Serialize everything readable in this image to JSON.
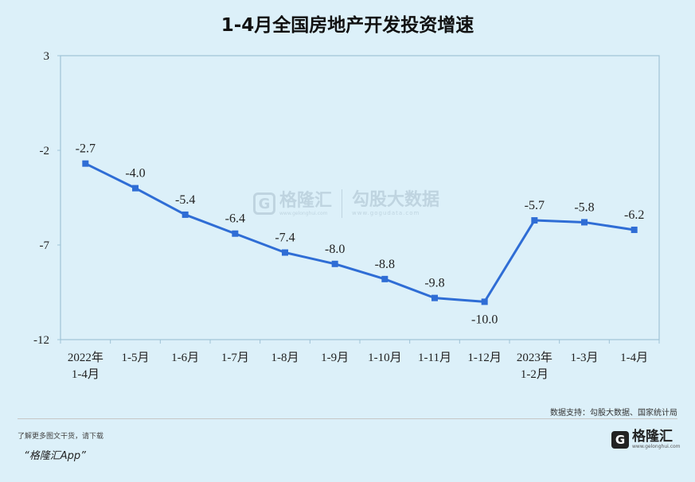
{
  "chart_data": {
    "type": "line",
    "title": "1-4月全国房地产开发投资增速",
    "categories": [
      [
        "2022年",
        "1-4月"
      ],
      [
        "1-5月"
      ],
      [
        "1-6月"
      ],
      [
        "1-7月"
      ],
      [
        "1-8月"
      ],
      [
        "1-9月"
      ],
      [
        "1-10月"
      ],
      [
        "1-11月"
      ],
      [
        "1-12月"
      ],
      [
        "2023年",
        "1-2月"
      ],
      [
        "1-3月"
      ],
      [
        "1-4月"
      ]
    ],
    "values": [
      -2.7,
      -4.0,
      -5.4,
      -6.4,
      -7.4,
      -8.0,
      -8.8,
      -9.8,
      -10.0,
      -5.7,
      -5.8,
      -6.2
    ],
    "data_labels": [
      "-2.7",
      "-4.0",
      "-5.4",
      "-6.4",
      "-7.4",
      "-8.0",
      "-8.8",
      "-9.8",
      "-10.0",
      "-5.7",
      "-5.8",
      "-6.2"
    ],
    "ylim": [
      -12,
      3
    ],
    "yticks": [
      3,
      -2,
      -7,
      -12
    ],
    "ytick_labels": [
      "3",
      "-2",
      "-7",
      "-12"
    ],
    "xlabel": "",
    "ylabel": "",
    "grid": false,
    "colors": {
      "line": "#2f6dd5",
      "frame": "#9fc3d6",
      "background": "#dcf0f9"
    }
  },
  "source": "数据支持：勾股大数据、国家统计局",
  "footer": {
    "promo": "了解更多图文干货，请下载",
    "app_name": "“格隆汇App”"
  },
  "logo": {
    "mark": "G",
    "name": "格隆汇",
    "sub": "www.gelonghui.com"
  },
  "watermark": {
    "mark": "G",
    "name": "格隆汇",
    "url": "www.gelonghui.com",
    "name2": "勾股大数据",
    "url2": "www.gogudata.com"
  }
}
